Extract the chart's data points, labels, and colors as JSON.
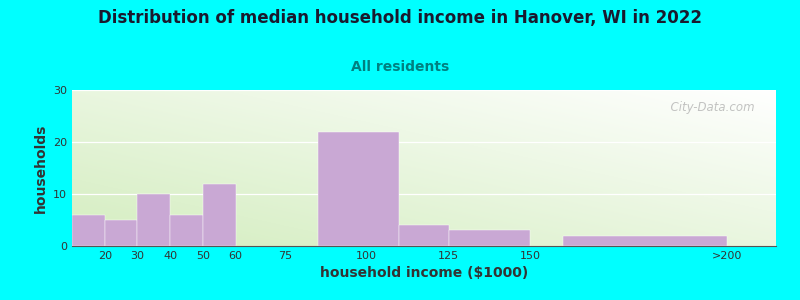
{
  "title": "Distribution of median household income in Hanover, WI in 2022",
  "subtitle": "All residents",
  "xlabel": "household income ($1000)",
  "ylabel": "households",
  "background_color": "#00FFFF",
  "bar_color": "#C9A8D4",
  "gradient_colors": [
    "#d4edc0",
    "#f5fff5",
    "#ffffff"
  ],
  "bar_lefts": [
    10,
    20,
    30,
    40,
    50,
    60,
    85,
    110,
    125,
    160
  ],
  "bar_widths": [
    10,
    10,
    10,
    10,
    10,
    15,
    25,
    15,
    25,
    50
  ],
  "bar_heights": [
    6,
    5,
    10,
    6,
    12,
    0,
    22,
    4,
    3,
    2
  ],
  "xtick_positions": [
    20,
    30,
    40,
    50,
    60,
    75,
    100,
    125,
    150,
    210
  ],
  "xtick_labels": [
    "20",
    "30",
    "40",
    "50",
    "60",
    "75",
    "100",
    "125",
    "150",
    ">200"
  ],
  "ytick_positions": [
    0,
    10,
    20,
    30
  ],
  "ytick_labels": [
    "0",
    "10",
    "20",
    "30"
  ],
  "xlim": [
    10,
    225
  ],
  "ylim": [
    0,
    30
  ],
  "title_fontsize": 12,
  "subtitle_fontsize": 10,
  "axis_label_fontsize": 10,
  "title_color": "#1a1a2e",
  "subtitle_color": "#008080",
  "watermark": "  City-Data.com"
}
